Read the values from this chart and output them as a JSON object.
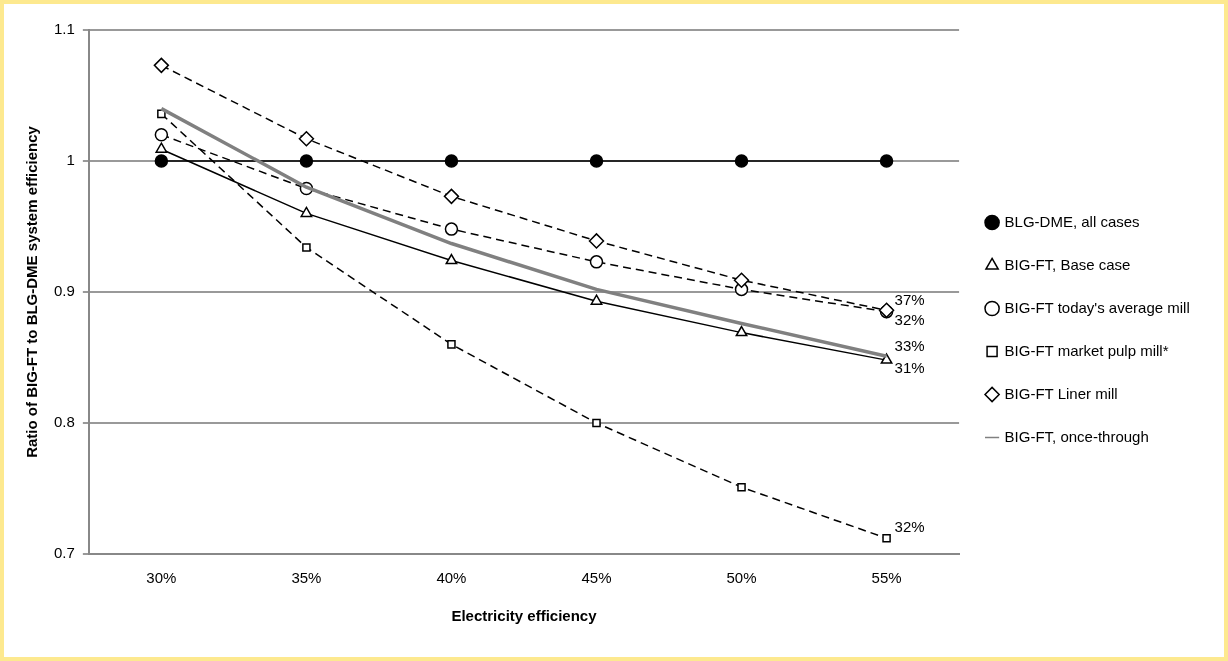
{
  "chart_data": {
    "type": "line",
    "xlabel": "Electricity efficiency",
    "ylabel": "Ratio of BIG-FT to BLG-DME system efficiency",
    "categories": [
      "30%",
      "35%",
      "40%",
      "45%",
      "50%",
      "55%"
    ],
    "ylim": [
      0.7,
      1.1
    ],
    "yticks": [
      0.7,
      0.8,
      0.9,
      1,
      1.1
    ],
    "grid": "y",
    "legend": "right",
    "series": [
      {
        "name": "BLG-DME, all cases",
        "color": "#000000",
        "marker": "circle",
        "line_style": "solid",
        "values": [
          1,
          1,
          1,
          1,
          1,
          1
        ]
      },
      {
        "name": "BIG-FT, Base case",
        "color": "#000000",
        "marker": "triangle",
        "line_style": "solid",
        "values": [
          1.009,
          0.96,
          0.924,
          0.893,
          0.869,
          0.848
        ]
      },
      {
        "name": "BIG-FT today's average mill",
        "color": "#000000",
        "marker": "circle",
        "line_style": "dashed",
        "values": [
          1.02,
          0.979,
          0.948,
          0.923,
          0.902,
          0.885
        ]
      },
      {
        "name": "BIG-FT market pulp mill*",
        "color": "#000000",
        "marker": "square",
        "line_style": "dashed",
        "values": [
          1.036,
          0.934,
          0.86,
          0.8,
          0.751,
          0.712
        ]
      },
      {
        "name": "BIG-FT Liner mill",
        "color": "#000000",
        "marker": "diamond",
        "line_style": "dashed",
        "values": [
          1.073,
          1.017,
          0.973,
          0.939,
          0.909,
          0.886
        ]
      },
      {
        "name": "BIG-FT, once-through",
        "color": "#808080",
        "marker": "none",
        "line_style": "solid",
        "values": [
          1.04,
          0.98,
          0.937,
          0.902,
          0.876,
          0.851
        ]
      }
    ],
    "annotations": [
      {
        "text": "37%",
        "x": "55%",
        "y": 0.886
      },
      {
        "text": "32%",
        "x": "55%",
        "y": 0.885
      },
      {
        "text": "33%",
        "x": "55%",
        "y": 0.851
      },
      {
        "text": "31%",
        "x": "55%",
        "y": 0.848
      },
      {
        "text": "32%",
        "x": "55%",
        "y": 0.712
      }
    ]
  }
}
